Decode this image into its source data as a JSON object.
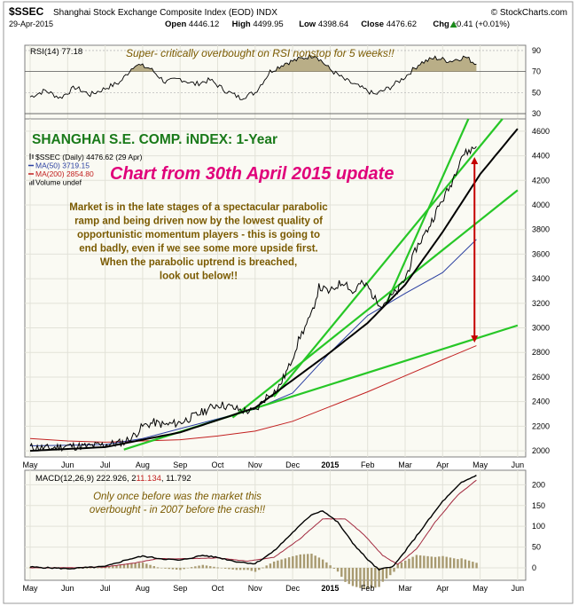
{
  "chart_data": {
    "type": "line",
    "header": {
      "symbol": "$SSEC",
      "name": "Shanghai Stock Exchange Composite Index (EOD)  INDX",
      "credit": "© StockCharts.com",
      "date": "29-Apr-2015",
      "ohlc": [
        {
          "k": "Open",
          "v": "4446.12"
        },
        {
          "k": "High",
          "v": "4499.95"
        },
        {
          "k": "Low",
          "v": "4398.64"
        },
        {
          "k": "Close",
          "v": "4476.62"
        },
        {
          "k": "Chg",
          "v": "+0.41 (+0.01%)"
        }
      ],
      "chg_icon": "up-triangle-icon"
    },
    "title": "SHANGHAI S.E. COMP. iNDEX: 1-Year",
    "subtitle": "Chart from 30th April 2015 update",
    "commentary": [
      "Market is in the late stages of a spectacular parabolic",
      "ramp and being driven now by the lowest quality of",
      "opportunistic momentum players - this is going to",
      "end badly, even if we see some more upside first.",
      "When the parabolic uptrend is breached,",
      "look out below!!"
    ],
    "legend": [
      {
        "label": "$SSEC (Daily) 4476.62 (29 Apr)",
        "color": "#000000",
        "icon": "price-bars-icon"
      },
      {
        "label": "MA(50) 3719.15",
        "color": "#2a3fa0",
        "icon": "line-icon"
      },
      {
        "label": "MA(200) 2854.80",
        "color": "#c21f1f",
        "icon": "line-icon"
      },
      {
        "label": "Volume undef",
        "color": "#000000",
        "icon": "volume-bars-icon"
      }
    ],
    "x_labels": [
      "May",
      "Jun",
      "Jul",
      "Aug",
      "Sep",
      "Oct",
      "Nov",
      "Dec",
      "2015",
      "Feb",
      "Mar",
      "Apr",
      "May",
      "Jun"
    ],
    "price_axis": {
      "ticks": [
        2000,
        2200,
        2400,
        2600,
        2800,
        3000,
        3200,
        3400,
        3600,
        3800,
        4000,
        4200,
        4400,
        4600
      ],
      "range": [
        1950,
        4700
      ]
    },
    "price_series": [
      {
        "m": 0.0,
        "v": 2030
      },
      {
        "m": 0.5,
        "v": 2020
      },
      {
        "m": 1.0,
        "v": 2040
      },
      {
        "m": 1.5,
        "v": 2035
      },
      {
        "m": 2.0,
        "v": 2050
      },
      {
        "m": 2.5,
        "v": 2070
      },
      {
        "m": 2.8,
        "v": 2130
      },
      {
        "m": 3.0,
        "v": 2200
      },
      {
        "m": 3.3,
        "v": 2230
      },
      {
        "m": 3.6,
        "v": 2210
      },
      {
        "m": 4.0,
        "v": 2230
      },
      {
        "m": 4.5,
        "v": 2300
      },
      {
        "m": 5.0,
        "v": 2380
      },
      {
        "m": 5.3,
        "v": 2360
      },
      {
        "m": 5.6,
        "v": 2330
      },
      {
        "m": 6.0,
        "v": 2320
      },
      {
        "m": 6.3,
        "v": 2440
      },
      {
        "m": 6.6,
        "v": 2500
      },
      {
        "m": 6.9,
        "v": 2680
      },
      {
        "m": 7.2,
        "v": 2930
      },
      {
        "m": 7.5,
        "v": 3100
      },
      {
        "m": 7.7,
        "v": 3330
      },
      {
        "m": 8.0,
        "v": 3290
      },
      {
        "m": 8.2,
        "v": 3350
      },
      {
        "m": 8.4,
        "v": 3380
      },
      {
        "m": 8.6,
        "v": 3280
      },
      {
        "m": 8.8,
        "v": 3360
      },
      {
        "m": 9.0,
        "v": 3340
      },
      {
        "m": 9.2,
        "v": 3230
      },
      {
        "m": 9.4,
        "v": 3190
      },
      {
        "m": 9.6,
        "v": 3250
      },
      {
        "m": 9.8,
        "v": 3300
      },
      {
        "m": 10.0,
        "v": 3400
      },
      {
        "m": 10.3,
        "v": 3650
      },
      {
        "m": 10.6,
        "v": 3800
      },
      {
        "m": 10.9,
        "v": 3990
      },
      {
        "m": 11.2,
        "v": 4150
      },
      {
        "m": 11.5,
        "v": 4400
      },
      {
        "m": 11.9,
        "v": 4476
      }
    ],
    "ma50": [
      {
        "m": 0.0,
        "v": 2040
      },
      {
        "m": 2.0,
        "v": 2050
      },
      {
        "m": 3.0,
        "v": 2100
      },
      {
        "m": 4.0,
        "v": 2180
      },
      {
        "m": 5.0,
        "v": 2260
      },
      {
        "m": 6.0,
        "v": 2340
      },
      {
        "m": 7.0,
        "v": 2470
      },
      {
        "m": 8.0,
        "v": 2800
      },
      {
        "m": 9.0,
        "v": 3100
      },
      {
        "m": 10.0,
        "v": 3280
      },
      {
        "m": 11.0,
        "v": 3450
      },
      {
        "m": 11.9,
        "v": 3719
      }
    ],
    "ma200": [
      {
        "m": 0.0,
        "v": 2100
      },
      {
        "m": 1.0,
        "v": 2080
      },
      {
        "m": 2.0,
        "v": 2070
      },
      {
        "m": 3.0,
        "v": 2080
      },
      {
        "m": 4.0,
        "v": 2090
      },
      {
        "m": 5.0,
        "v": 2120
      },
      {
        "m": 6.0,
        "v": 2160
      },
      {
        "m": 7.0,
        "v": 2240
      },
      {
        "m": 8.0,
        "v": 2360
      },
      {
        "m": 9.0,
        "v": 2480
      },
      {
        "m": 10.0,
        "v": 2610
      },
      {
        "m": 11.0,
        "v": 2740
      },
      {
        "m": 11.9,
        "v": 2855
      }
    ],
    "parabolic_curve": [
      {
        "m": 0.0,
        "v": 2000
      },
      {
        "m": 2.0,
        "v": 2030
      },
      {
        "m": 4.0,
        "v": 2150
      },
      {
        "m": 6.0,
        "v": 2350
      },
      {
        "m": 8.0,
        "v": 2800
      },
      {
        "m": 9.0,
        "v": 3040
      },
      {
        "m": 10.0,
        "v": 3350
      },
      {
        "m": 11.0,
        "v": 3780
      },
      {
        "m": 12.0,
        "v": 4250
      },
      {
        "m": 13.0,
        "v": 4620
      }
    ],
    "trend_lines": [
      {
        "from": {
          "m": 2.5,
          "v": 2010
        },
        "to": {
          "m": 13.0,
          "v": 3020
        }
      },
      {
        "from": {
          "m": 5.4,
          "v": 2270
        },
        "to": {
          "m": 13.0,
          "v": 4120
        }
      },
      {
        "from": {
          "m": 6.5,
          "v": 2440
        },
        "to": {
          "m": 13.0,
          "v": 4850
        }
      },
      {
        "from": {
          "m": 9.5,
          "v": 3200
        },
        "to": {
          "m": 13.0,
          "v": 5600
        }
      }
    ],
    "gap_arrow": {
      "m": 11.85,
      "top": 4390,
      "bottom": 2880
    },
    "rsi": {
      "label": "RSI(14) 77.18",
      "annotation": "Super- critically overbought on RSI nonstop for 5 weeks!!",
      "ticks": [
        30,
        50,
        70,
        90
      ],
      "range": [
        25,
        95
      ],
      "series": [
        {
          "m": 0.0,
          "v": 46
        },
        {
          "m": 0.4,
          "v": 52
        },
        {
          "m": 0.8,
          "v": 45
        },
        {
          "m": 1.2,
          "v": 55
        },
        {
          "m": 1.6,
          "v": 48
        },
        {
          "m": 2.0,
          "v": 54
        },
        {
          "m": 2.4,
          "v": 60
        },
        {
          "m": 2.8,
          "v": 77
        },
        {
          "m": 3.2,
          "v": 73
        },
        {
          "m": 3.6,
          "v": 60
        },
        {
          "m": 4.0,
          "v": 63
        },
        {
          "m": 4.4,
          "v": 58
        },
        {
          "m": 4.8,
          "v": 62
        },
        {
          "m": 5.2,
          "v": 52
        },
        {
          "m": 5.6,
          "v": 45
        },
        {
          "m": 6.0,
          "v": 50
        },
        {
          "m": 6.4,
          "v": 70
        },
        {
          "m": 6.8,
          "v": 78
        },
        {
          "m": 7.2,
          "v": 82
        },
        {
          "m": 7.6,
          "v": 86
        },
        {
          "m": 8.0,
          "v": 72
        },
        {
          "m": 8.4,
          "v": 62
        },
        {
          "m": 8.8,
          "v": 55
        },
        {
          "m": 9.2,
          "v": 48
        },
        {
          "m": 9.6,
          "v": 55
        },
        {
          "m": 10.0,
          "v": 65
        },
        {
          "m": 10.4,
          "v": 78
        },
        {
          "m": 10.8,
          "v": 83
        },
        {
          "m": 11.2,
          "v": 80
        },
        {
          "m": 11.6,
          "v": 84
        },
        {
          "m": 11.9,
          "v": 77
        }
      ]
    },
    "macd": {
      "label_prefix": "MACD(12,26,9) 222.926, 2",
      "label_mid": "11.134",
      "label_suffix": ", 11.792",
      "annotation": [
        "Only once before was the market this",
        "overbought -  in 2007 before the crash!!"
      ],
      "ticks": [
        0,
        50,
        100,
        150,
        200
      ],
      "range": [
        -30,
        235
      ],
      "macd_series": [
        {
          "m": 0.0,
          "v": 2
        },
        {
          "m": 1.0,
          "v": -2
        },
        {
          "m": 2.0,
          "v": 3
        },
        {
          "m": 2.6,
          "v": 20
        },
        {
          "m": 3.0,
          "v": 28
        },
        {
          "m": 3.5,
          "v": 22
        },
        {
          "m": 4.0,
          "v": 18
        },
        {
          "m": 4.6,
          "v": 30
        },
        {
          "m": 5.0,
          "v": 25
        },
        {
          "m": 5.5,
          "v": 15
        },
        {
          "m": 6.0,
          "v": 10
        },
        {
          "m": 6.5,
          "v": 40
        },
        {
          "m": 7.0,
          "v": 85
        },
        {
          "m": 7.5,
          "v": 128
        },
        {
          "m": 7.8,
          "v": 138
        },
        {
          "m": 8.2,
          "v": 110
        },
        {
          "m": 8.6,
          "v": 60
        },
        {
          "m": 9.0,
          "v": 20
        },
        {
          "m": 9.3,
          "v": -5
        },
        {
          "m": 9.7,
          "v": 5
        },
        {
          "m": 10.0,
          "v": 40
        },
        {
          "m": 10.5,
          "v": 100
        },
        {
          "m": 11.0,
          "v": 160
        },
        {
          "m": 11.5,
          "v": 205
        },
        {
          "m": 11.9,
          "v": 223
        }
      ],
      "signal_series": [
        {
          "m": 0.0,
          "v": 0
        },
        {
          "m": 1.0,
          "v": 0
        },
        {
          "m": 2.0,
          "v": 2
        },
        {
          "m": 2.8,
          "v": 12
        },
        {
          "m": 3.4,
          "v": 22
        },
        {
          "m": 4.2,
          "v": 22
        },
        {
          "m": 5.0,
          "v": 24
        },
        {
          "m": 5.8,
          "v": 16
        },
        {
          "m": 6.5,
          "v": 25
        },
        {
          "m": 7.2,
          "v": 70
        },
        {
          "m": 7.8,
          "v": 118
        },
        {
          "m": 8.4,
          "v": 118
        },
        {
          "m": 8.9,
          "v": 80
        },
        {
          "m": 9.4,
          "v": 30
        },
        {
          "m": 9.8,
          "v": 8
        },
        {
          "m": 10.3,
          "v": 45
        },
        {
          "m": 10.8,
          "v": 110
        },
        {
          "m": 11.4,
          "v": 175
        },
        {
          "m": 11.9,
          "v": 211
        }
      ]
    }
  },
  "colors": {
    "panel_bg": "#fafaf3",
    "price_black": "#000000",
    "ma50": "#2a3fa0",
    "ma200": "#c21f1f",
    "trend_green": "#27c727",
    "arrow_red": "#c40000",
    "rsi_fill": "#b9ae87",
    "title_green": "#1a7a1a",
    "annotation_magenta": "#e0007a",
    "annotation_brown": "#7a5a00",
    "macd_signal": "#a2293f",
    "histogram": "#a89a70"
  }
}
